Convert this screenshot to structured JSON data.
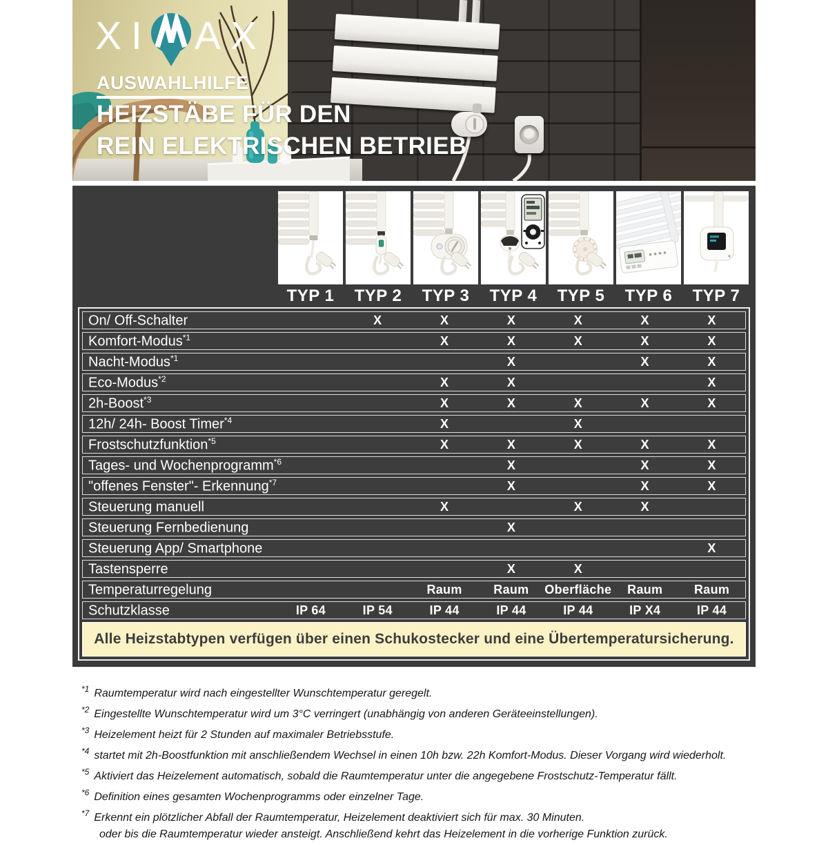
{
  "header": {
    "brand": "XIMAX",
    "brand_prefix": "XI",
    "brand_suffix": "AX",
    "tagline": "AUSWAHLHILFE",
    "title_line1": "HEIZSTÄBE FÜR DEN",
    "title_line2": "REIN ELEKTRISCHEN BETRIEB"
  },
  "colors": {
    "accent_teal": "#2B8E99",
    "table_dark": "#3B3B3B",
    "note_yellow": "#FBF2C6",
    "row_border": "#E6E6E6",
    "text_white": "#FFFFFF"
  },
  "table": {
    "types": [
      "TYP 1",
      "TYP 2",
      "TYP 3",
      "TYP 4",
      "TYP 5",
      "TYP 6",
      "TYP 7"
    ],
    "type_images": [
      {
        "name": "typ1-heating-rod-plain",
        "art": "rod-plain"
      },
      {
        "name": "typ2-heating-rod-switch",
        "art": "rod-switch"
      },
      {
        "name": "typ3-heating-rod-thermostat",
        "art": "rod-thermostat"
      },
      {
        "name": "typ4-heating-rod-remote",
        "art": "rod-remote"
      },
      {
        "name": "typ5-heating-rod-dial",
        "art": "rod-dial"
      },
      {
        "name": "typ6-radiator-control-panel",
        "art": "panel-display"
      },
      {
        "name": "typ7-heating-rod-smartbox",
        "art": "rod-smartbox"
      }
    ],
    "rows": [
      {
        "label": "On/ Off-Schalter",
        "sup": "",
        "values": [
          "",
          "X",
          "X",
          "X",
          "X",
          "X",
          "X"
        ]
      },
      {
        "label": "Komfort-Modus",
        "sup": "*1",
        "values": [
          "",
          "",
          "X",
          "X",
          "X",
          "X",
          "X"
        ]
      },
      {
        "label": "Nacht-Modus",
        "sup": "*1",
        "values": [
          "",
          "",
          "",
          "X",
          "",
          "X",
          "X"
        ]
      },
      {
        "label": "Eco-Modus",
        "sup": "*2",
        "values": [
          "",
          "",
          "X",
          "X",
          "",
          "",
          "X"
        ]
      },
      {
        "label": "2h-Boost",
        "sup": "*3",
        "values": [
          "",
          "",
          "X",
          "X",
          "X",
          "X",
          "X"
        ]
      },
      {
        "label": "12h/ 24h- Boost Timer",
        "sup": "*4",
        "values": [
          "",
          "",
          "X",
          "",
          "X",
          "",
          ""
        ]
      },
      {
        "label": "Frostschutzfunktion",
        "sup": "*5",
        "values": [
          "",
          "",
          "X",
          "X",
          "X",
          "X",
          "X"
        ]
      },
      {
        "label": "Tages- und Wochenprogramm",
        "sup": "*6",
        "values": [
          "",
          "",
          "",
          "X",
          "",
          "X",
          "X"
        ]
      },
      {
        "label": "\"offenes Fenster\"- Erkennung",
        "sup": "*7",
        "values": [
          "",
          "",
          "",
          "X",
          "",
          "X",
          "X"
        ]
      },
      {
        "label": "Steuerung manuell",
        "sup": "",
        "values": [
          "",
          "",
          "X",
          "",
          "X",
          "X",
          ""
        ]
      },
      {
        "label": "Steuerung Fernbedienung",
        "sup": "",
        "values": [
          "",
          "",
          "",
          "X",
          "",
          "",
          ""
        ]
      },
      {
        "label": "Steuerung App/ Smartphone",
        "sup": "",
        "values": [
          "",
          "",
          "",
          "",
          "",
          "",
          "X"
        ]
      },
      {
        "label": "Tastensperre",
        "sup": "",
        "values": [
          "",
          "",
          "",
          "X",
          "X",
          "",
          ""
        ]
      },
      {
        "label": "Temperaturregelung",
        "sup": "",
        "values": [
          "",
          "",
          "Raum",
          "Raum",
          "Oberfläche",
          "Raum",
          "Raum"
        ]
      },
      {
        "label": "Schutzklasse",
        "sup": "",
        "values": [
          "IP 64",
          "IP 54",
          "IP 44",
          "IP 44",
          "IP 44",
          "IP X4",
          "IP 44"
        ]
      }
    ],
    "note": "Alle Heizstabtypen verfügen über einen Schukostecker und eine Übertemperatursicherung."
  },
  "footnotes": [
    {
      "marker": "*1",
      "text": "Raumtemperatur wird nach eingestellter Wunschtemperatur geregelt."
    },
    {
      "marker": "*2",
      "text": "Eingestellte Wunschtemperatur wird um 3°C verringert (unabhängig von anderen Geräteeinstellungen)."
    },
    {
      "marker": "*3",
      "text": "Heizelement heizt für 2 Stunden auf maximaler Betriebsstufe."
    },
    {
      "marker": "*4",
      "text": "startet mit 2h-Boostfunktion mit anschließendem Wechsel in einen 10h bzw. 22h Komfort-Modus. Dieser Vorgang wird wiederholt."
    },
    {
      "marker": "*5",
      "text": "Aktiviert das Heizelement automatisch, sobald die Raumtemperatur unter die angegebene Frostschutz-Temperatur fällt."
    },
    {
      "marker": "*6",
      "text": "Definition eines gesamten Wochenprogramms oder einzelner Tage."
    },
    {
      "marker": "*7",
      "text": "Erkennt ein plötzlicher Abfall der Raumtemperatur, Heizelement deaktiviert sich für max. 30 Minuten.",
      "text2": "oder bis die Raumtemperatur wieder ansteigt. Anschließend kehrt das Heizelement in die vorherige Funktion zurück."
    }
  ]
}
